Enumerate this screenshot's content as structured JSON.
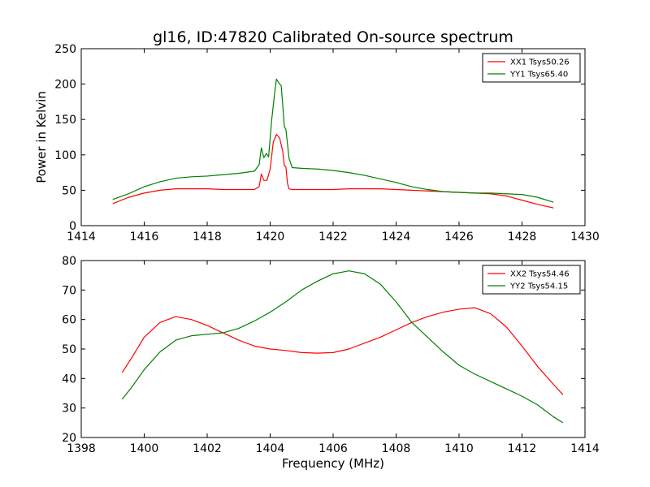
{
  "chart_data": [
    {
      "type": "line",
      "title": "gl16, ID:47820 Calibrated On-source spectrum",
      "xlabel": "",
      "ylabel": "Power in Kelvin",
      "xlim": [
        1414,
        1430
      ],
      "ylim": [
        0,
        250
      ],
      "xticks": [
        1414,
        1416,
        1418,
        1420,
        1422,
        1424,
        1426,
        1428,
        1430
      ],
      "yticks": [
        0,
        50,
        100,
        150,
        200,
        250
      ],
      "grid": false,
      "legend_position": "top-right",
      "series": [
        {
          "name": "XX1 Tsys50.26",
          "color": "#ff0000",
          "x": [
            1415.0,
            1415.5,
            1416.0,
            1416.5,
            1417.0,
            1417.5,
            1418.0,
            1418.5,
            1419.0,
            1419.5,
            1419.65,
            1419.72,
            1419.8,
            1419.9,
            1420.0,
            1420.1,
            1420.2,
            1420.3,
            1420.4,
            1420.45,
            1420.5,
            1420.55,
            1420.6,
            1420.7,
            1421.0,
            1421.5,
            1422.0,
            1422.5,
            1423.0,
            1423.5,
            1424.0,
            1424.5,
            1425.0,
            1425.5,
            1426.0,
            1426.5,
            1427.0,
            1427.5,
            1428.0,
            1428.5,
            1429.0
          ],
          "y": [
            31,
            40,
            46,
            50,
            52,
            52,
            52,
            51,
            51,
            51,
            55,
            73,
            64,
            64,
            80,
            118,
            129,
            124,
            105,
            85,
            83,
            60,
            52,
            51,
            51,
            51,
            51,
            52,
            52,
            52,
            51,
            50,
            49,
            48,
            47,
            46,
            45,
            42,
            36,
            30,
            25
          ]
        },
        {
          "name": "YY1 Tsys65.40",
          "color": "#008000",
          "x": [
            1415.0,
            1415.5,
            1416.0,
            1416.5,
            1417.0,
            1417.5,
            1418.0,
            1418.5,
            1419.0,
            1419.5,
            1419.65,
            1419.72,
            1419.8,
            1419.88,
            1419.95,
            1420.05,
            1420.15,
            1420.2,
            1420.3,
            1420.35,
            1420.4,
            1420.45,
            1420.5,
            1420.6,
            1420.7,
            1421.0,
            1421.5,
            1422.0,
            1422.5,
            1423.0,
            1423.5,
            1424.0,
            1424.5,
            1425.0,
            1425.5,
            1426.0,
            1426.5,
            1427.0,
            1427.5,
            1428.0,
            1428.5,
            1429.0
          ],
          "y": [
            37,
            45,
            55,
            62,
            67,
            69,
            70,
            72,
            74,
            77,
            86,
            110,
            96,
            102,
            97,
            150,
            190,
            207,
            200,
            198,
            170,
            140,
            136,
            95,
            82,
            81,
            80,
            78,
            75,
            71,
            66,
            61,
            55,
            51,
            48,
            47,
            46,
            46,
            45,
            44,
            40,
            33
          ]
        }
      ]
    },
    {
      "type": "line",
      "title": "",
      "xlabel": "Frequency (MHz)",
      "ylabel": "",
      "xlim": [
        1398,
        1414
      ],
      "ylim": [
        20,
        80
      ],
      "xticks": [
        1398,
        1400,
        1402,
        1404,
        1406,
        1408,
        1410,
        1412,
        1414
      ],
      "yticks": [
        20,
        30,
        40,
        50,
        60,
        70,
        80
      ],
      "grid": false,
      "legend_position": "top-right",
      "series": [
        {
          "name": "XX2 Tsys54.46",
          "color": "#ff0000",
          "x": [
            1399.3,
            1399.6,
            1400.0,
            1400.5,
            1401.0,
            1401.5,
            1402.0,
            1402.5,
            1403.0,
            1403.5,
            1404.0,
            1404.5,
            1405.0,
            1405.5,
            1406.0,
            1406.5,
            1407.0,
            1407.5,
            1408.0,
            1408.5,
            1409.0,
            1409.5,
            1410.0,
            1410.5,
            1411.0,
            1411.5,
            1412.0,
            1412.5,
            1413.0,
            1413.3
          ],
          "y": [
            42,
            47,
            54,
            59,
            61,
            60,
            58,
            55.5,
            53,
            51,
            50,
            49.5,
            48.8,
            48.6,
            48.8,
            50,
            52,
            54,
            56.5,
            59,
            61,
            62.5,
            63.5,
            64,
            62,
            57.5,
            51,
            44,
            38,
            34.5
          ]
        },
        {
          "name": "YY2 Tsys54.15",
          "color": "#008000",
          "x": [
            1399.3,
            1399.6,
            1400.0,
            1400.5,
            1401.0,
            1401.5,
            1402.0,
            1402.5,
            1403.0,
            1403.5,
            1404.0,
            1404.5,
            1405.0,
            1405.5,
            1406.0,
            1406.5,
            1407.0,
            1407.5,
            1408.0,
            1408.5,
            1409.0,
            1409.5,
            1410.0,
            1410.5,
            1411.0,
            1411.5,
            1412.0,
            1412.5,
            1413.0,
            1413.3
          ],
          "y": [
            33,
            37,
            43,
            49,
            53,
            54.5,
            55,
            55.5,
            57,
            59.5,
            62.5,
            66,
            70,
            73,
            75.5,
            76.5,
            75.5,
            72,
            66,
            59,
            54,
            49,
            44.5,
            41.5,
            39,
            36.5,
            34,
            31,
            27,
            25
          ]
        }
      ]
    }
  ]
}
